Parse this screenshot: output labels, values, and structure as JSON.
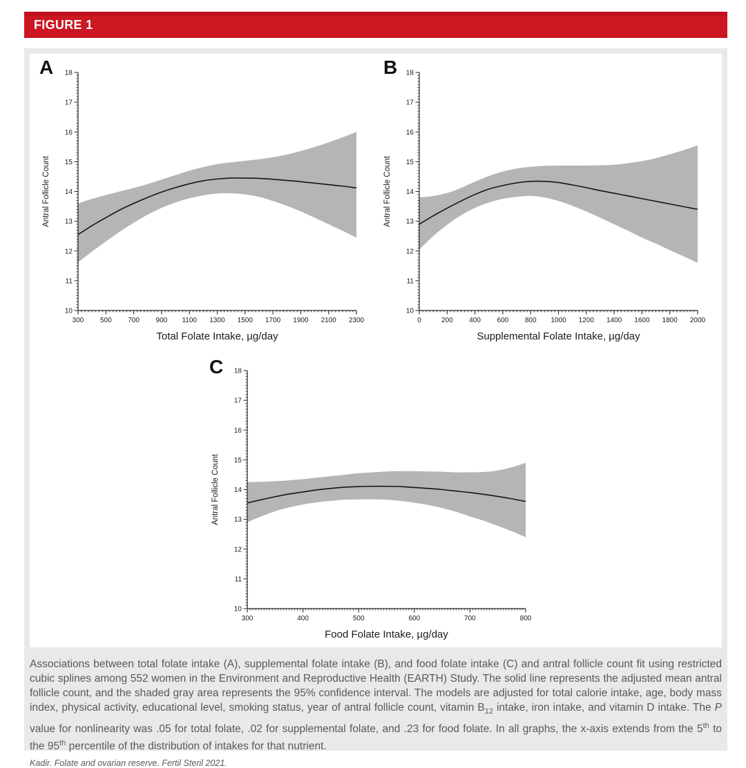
{
  "header": {
    "title": "FIGURE 1"
  },
  "colors": {
    "header_red": "#cc1722",
    "band_gray": "#b5b5b5",
    "line_black": "#141414",
    "axis_color": "#222222",
    "caption_gray": "#58595b",
    "panel_background": "#e8e9ea"
  },
  "caption": {
    "part1": "Associations between total folate intake (A), supplemental folate intake (B), and food folate intake (C) and antral follicle count fit using restricted cubic splines among 552 women in the Environment and Reproductive Health (EARTH) Study. The solid line represents the adjusted mean antral follicle count, and the shaded gray area represents the 95% confidence interval. The models are adjusted for total calorie intake, age, body mass index, physical activity, educational level, smoking status, year of antral follicle count, vitamin B",
    "sub1": "12",
    "part2": " intake, iron intake, and vitamin D intake. The ",
    "italic_p": "P",
    "part3": " value for nonlinearity was .05 for total folate, .02 for supplemental folate, and .23 for food folate. In all graphs, the x-axis extends from the 5",
    "sup1": "th",
    "part4": " to the 95",
    "sup2": "th",
    "part5": " percentile of the distribution of intakes for that nutrient.",
    "attribution": "Kadir. Folate and ovarian reserve. Fertil Steril 2021."
  },
  "chart_data": [
    {
      "type": "line",
      "panel_label": "A",
      "xlabel": "Total Folate Intake, µg/day",
      "ylabel": "Antral Follicle Count",
      "xlim": [
        300,
        2300
      ],
      "ylim": [
        10,
        18
      ],
      "xticks": [
        300,
        500,
        700,
        900,
        1100,
        1300,
        1500,
        1700,
        1900,
        2100,
        2300
      ],
      "yticks": [
        10,
        11,
        12,
        13,
        14,
        15,
        16,
        17,
        18
      ],
      "x_minor_step": 25,
      "y_minor_step": 0.1,
      "grid": false,
      "x": [
        300,
        400,
        500,
        600,
        700,
        800,
        900,
        1000,
        1100,
        1200,
        1300,
        1400,
        1500,
        1600,
        1700,
        1800,
        1900,
        2000,
        2100,
        2200,
        2300
      ],
      "series": [
        {
          "name": "adjusted mean antral follicle count",
          "values": [
            12.55,
            12.85,
            13.12,
            13.38,
            13.6,
            13.8,
            13.98,
            14.13,
            14.26,
            14.36,
            14.42,
            14.45,
            14.45,
            14.44,
            14.41,
            14.37,
            14.33,
            14.28,
            14.23,
            14.18,
            14.12
          ]
        },
        {
          "name": "95% CI upper",
          "values": [
            13.6,
            13.75,
            13.88,
            14.0,
            14.12,
            14.25,
            14.4,
            14.55,
            14.7,
            14.82,
            14.92,
            14.98,
            15.03,
            15.08,
            15.15,
            15.24,
            15.36,
            15.5,
            15.65,
            15.82,
            16.0
          ]
        },
        {
          "name": "95% CI lower",
          "values": [
            11.62,
            11.98,
            12.32,
            12.65,
            12.95,
            13.22,
            13.45,
            13.63,
            13.77,
            13.87,
            13.93,
            13.94,
            13.9,
            13.82,
            13.68,
            13.52,
            13.33,
            13.12,
            12.9,
            12.68,
            12.45
          ]
        }
      ]
    },
    {
      "type": "line",
      "panel_label": "B",
      "xlabel": "Supplemental Folate Intake, µg/day",
      "ylabel": "Antral Follicle Count",
      "xlim": [
        0,
        2000
      ],
      "ylim": [
        10,
        18
      ],
      "xticks": [
        0,
        200,
        400,
        600,
        800,
        1000,
        1200,
        1400,
        1600,
        1800,
        2000
      ],
      "yticks": [
        10,
        11,
        12,
        13,
        14,
        15,
        16,
        17,
        18
      ],
      "x_minor_step": 25,
      "y_minor_step": 0.1,
      "grid": false,
      "x": [
        0,
        100,
        200,
        300,
        400,
        500,
        600,
        700,
        800,
        900,
        1000,
        1100,
        1200,
        1300,
        1400,
        1500,
        1600,
        1700,
        1800,
        1900,
        2000
      ],
      "series": [
        {
          "name": "adjusted mean antral follicle count",
          "values": [
            12.9,
            13.18,
            13.44,
            13.68,
            13.9,
            14.08,
            14.2,
            14.29,
            14.34,
            14.34,
            14.3,
            14.22,
            14.13,
            14.03,
            13.94,
            13.85,
            13.76,
            13.67,
            13.58,
            13.49,
            13.4
          ]
        },
        {
          "name": "95% CI upper",
          "values": [
            13.8,
            13.85,
            13.95,
            14.12,
            14.33,
            14.52,
            14.67,
            14.77,
            14.83,
            14.86,
            14.87,
            14.87,
            14.87,
            14.88,
            14.9,
            14.95,
            15.02,
            15.12,
            15.25,
            15.39,
            15.55
          ]
        },
        {
          "name": "95% CI lower",
          "values": [
            12.05,
            12.5,
            12.88,
            13.2,
            13.45,
            13.63,
            13.75,
            13.82,
            13.85,
            13.8,
            13.68,
            13.52,
            13.33,
            13.12,
            12.9,
            12.68,
            12.45,
            12.25,
            12.03,
            11.82,
            11.6
          ]
        }
      ]
    },
    {
      "type": "line",
      "panel_label": "C",
      "xlabel": "Food Folate Intake, µg/day",
      "ylabel": "Antral Follicle Count",
      "xlim": [
        300,
        800
      ],
      "ylim": [
        10,
        18
      ],
      "xticks": [
        300,
        400,
        500,
        600,
        700,
        800
      ],
      "yticks": [
        10,
        11,
        12,
        13,
        14,
        15,
        16,
        17,
        18
      ],
      "x_minor_step": 5,
      "y_minor_step": 0.1,
      "grid": false,
      "x": [
        300,
        325,
        350,
        375,
        400,
        425,
        450,
        475,
        500,
        525,
        550,
        575,
        600,
        625,
        650,
        675,
        700,
        725,
        750,
        775,
        800
      ],
      "series": [
        {
          "name": "adjusted mean antral follicle count",
          "values": [
            13.55,
            13.66,
            13.76,
            13.85,
            13.92,
            13.99,
            14.04,
            14.08,
            14.1,
            14.11,
            14.11,
            14.1,
            14.07,
            14.04,
            14.0,
            13.95,
            13.9,
            13.84,
            13.77,
            13.69,
            13.6
          ]
        },
        {
          "name": "95% CI upper",
          "values": [
            14.25,
            14.26,
            14.28,
            14.31,
            14.35,
            14.4,
            14.45,
            14.5,
            14.55,
            14.58,
            14.61,
            14.62,
            14.62,
            14.61,
            14.6,
            14.58,
            14.58,
            14.59,
            14.64,
            14.75,
            14.9
          ]
        },
        {
          "name": "95% CI lower",
          "values": [
            12.9,
            13.1,
            13.27,
            13.4,
            13.5,
            13.57,
            13.62,
            13.66,
            13.67,
            13.67,
            13.66,
            13.62,
            13.56,
            13.48,
            13.38,
            13.25,
            13.1,
            12.95,
            12.78,
            12.6,
            12.4
          ]
        }
      ]
    }
  ]
}
